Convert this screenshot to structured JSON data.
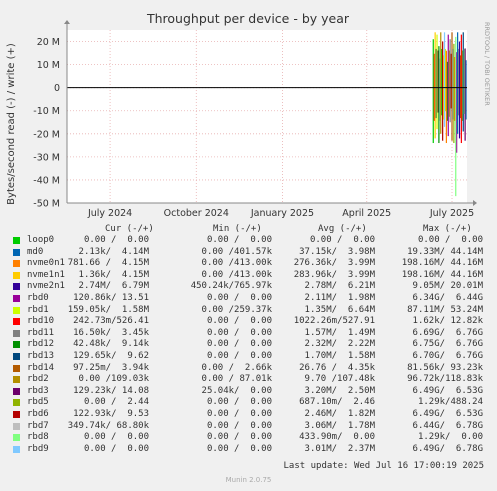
{
  "chart_data": {
    "type": "line",
    "title": "Throughput per device - by year",
    "ylabel": "Bytes/second read (-) / write (+)",
    "side_label": "RRDTOOL / TOBI OETIKER",
    "ylim": [
      -50000000,
      25000000
    ],
    "y_ticks": [
      {
        "value": 20000000,
        "label": "20 M"
      },
      {
        "value": 10000000,
        "label": "10 M"
      },
      {
        "value": 0,
        "label": "0"
      },
      {
        "value": -10000000,
        "label": "-10 M"
      },
      {
        "value": -20000000,
        "label": "-20 M"
      },
      {
        "value": -30000000,
        "label": "-30 M"
      },
      {
        "value": -40000000,
        "label": "-40 M"
      },
      {
        "value": -50000000,
        "label": "-50 M"
      }
    ],
    "x_range": [
      "2024-05-16",
      "2025-07-17"
    ],
    "x_ticks": [
      {
        "date": "2024-07-01",
        "label": "July 2024"
      },
      {
        "date": "2024-10-01",
        "label": "October 2024"
      },
      {
        "date": "2025-01-01",
        "label": "January 2025"
      },
      {
        "date": "2025-04-01",
        "label": "April 2025"
      },
      {
        "date": "2025-07-01",
        "label": "July 2025"
      }
    ],
    "activity_dates": [
      "2025-06-11",
      "2025-06-13",
      "2025-06-15",
      "2025-06-17",
      "2025-06-19",
      "2025-06-21",
      "2025-06-23",
      "2025-06-25",
      "2025-06-27",
      "2025-06-29",
      "2025-07-01",
      "2025-07-03",
      "2025-07-05",
      "2025-07-07",
      "2025-07-09",
      "2025-07-11",
      "2025-07-13",
      "2025-07-15"
    ],
    "activity_write": [
      21000000,
      24000000,
      23000000,
      18000000,
      24000000,
      20000000,
      24000000,
      16000000,
      23000000,
      21000000,
      24000000,
      19000000,
      22000000,
      24000000,
      20000000,
      23000000,
      24000000,
      17000000
    ],
    "activity_read": [
      -24000000,
      -22000000,
      -18000000,
      -24000000,
      -20000000,
      -23000000,
      -17000000,
      -24000000,
      -21000000,
      -15000000,
      -23000000,
      -24000000,
      -47000000,
      -20000000,
      -22000000,
      -24000000,
      -19000000,
      -23000000
    ],
    "legend_header": {
      "cur": "Cur (-/+)",
      "min": "Min (-/+)",
      "avg": "Avg (-/+)",
      "max": "Max (-/+)"
    },
    "series": [
      {
        "name": "loop0",
        "color": "#00cc00",
        "cur": "0.00 /  0.00",
        "min": "0.00 /  0.00",
        "avg": "0.00 /  0.00",
        "max": "0.00 /  0.00"
      },
      {
        "name": "md0",
        "color": "#0066b3",
        "cur": "2.13k/  4.14M",
        "min": "0.00 /401.57k",
        "avg": "37.15k/  3.98M",
        "max": "19.33M/ 44.14M"
      },
      {
        "name": "nvme0n1",
        "color": "#ff8000",
        "cur": "781.66 /  4.15M",
        "min": "0.00 /413.00k",
        "avg": "276.36k/  3.99M",
        "max": "198.16M/ 44.16M"
      },
      {
        "name": "nvme1n1",
        "color": "#ffcc00",
        "cur": "1.36k/  4.15M",
        "min": "0.00 /413.00k",
        "avg": "283.96k/  3.99M",
        "max": "198.16M/ 44.16M"
      },
      {
        "name": "nvme2n1",
        "color": "#330099",
        "cur": "2.74M/  6.79M",
        "min": "450.24k/765.97k",
        "avg": "2.78M/  6.21M",
        "max": "9.05M/ 20.01M"
      },
      {
        "name": "rbd0",
        "color": "#990099",
        "cur": "120.86k/ 13.51",
        "min": "0.00 /  0.00",
        "avg": "2.11M/  1.98M",
        "max": "6.34G/  6.44G"
      },
      {
        "name": "rbd1",
        "color": "#ccff00",
        "cur": "159.05k/  1.58M",
        "min": "0.00 /259.37k",
        "avg": "1.35M/  6.64M",
        "max": "87.11M/ 53.24M"
      },
      {
        "name": "rbd10",
        "color": "#ff0000",
        "cur": "242.73m/526.41",
        "min": "0.00 /  0.00",
        "avg": "1022.26m/527.91",
        "max": "1.62k/ 12.82k"
      },
      {
        "name": "rbd11",
        "color": "#808080",
        "cur": "16.50k/  3.45k",
        "min": "0.00 /  0.00",
        "avg": "1.57M/  1.49M",
        "max": "6.69G/  6.76G"
      },
      {
        "name": "rbd12",
        "color": "#008f00",
        "cur": "42.48k/  9.14k",
        "min": "0.00 /  0.00",
        "avg": "2.32M/  2.22M",
        "max": "6.75G/  6.76G"
      },
      {
        "name": "rbd13",
        "color": "#00487d",
        "cur": "129.65k/  9.62",
        "min": "0.00 /  0.00",
        "avg": "1.70M/  1.58M",
        "max": "6.70G/  6.76G"
      },
      {
        "name": "rbd14",
        "color": "#b35a00",
        "cur": "97.25m/  3.94k",
        "min": "0.00 /  2.66k",
        "avg": "26.76 /  4.35k",
        "max": "81.56k/ 93.23k"
      },
      {
        "name": "rbd2",
        "color": "#b38f00",
        "cur": "0.00 /109.03k",
        "min": "0.00 / 87.01k",
        "avg": "9.70 /107.48k",
        "max": "96.72k/118.83k"
      },
      {
        "name": "rbd3",
        "color": "#6b006b",
        "cur": "129.23k/ 14.08",
        "min": "25.04k/  0.00",
        "avg": "3.20M/  2.50M",
        "max": "6.49G/  6.53G"
      },
      {
        "name": "rbd5",
        "color": "#8fb300",
        "cur": "0.00 /  2.44",
        "min": "0.00 /  0.00",
        "avg": "687.10m/  2.46",
        "max": "1.29k/488.24"
      },
      {
        "name": "rbd6",
        "color": "#b30000",
        "cur": "122.93k/  9.53",
        "min": "0.00 /  0.00",
        "avg": "2.46M/  1.82M",
        "max": "6.49G/  6.53G"
      },
      {
        "name": "rbd7",
        "color": "#bebebe",
        "cur": "349.74k/ 68.80k",
        "min": "0.00 /  0.00",
        "avg": "3.06M/  1.78M",
        "max": "6.44G/  6.78G"
      },
      {
        "name": "rbd8",
        "color": "#80ff80",
        "cur": "0.00 /  0.00",
        "min": "0.00 /  0.00",
        "avg": "433.90m/  0.00",
        "max": "1.29k/  0.00"
      },
      {
        "name": "rbd9",
        "color": "#80c9ff",
        "cur": "0.00 /  0.00",
        "min": "0.00 /  0.00",
        "avg": "3.01M/  2.37M",
        "max": "6.49G/  6.78G"
      }
    ],
    "last_update": "Last update: Wed Jul 16 17:00:19 2025",
    "footer": "Munin 2.0.75"
  }
}
